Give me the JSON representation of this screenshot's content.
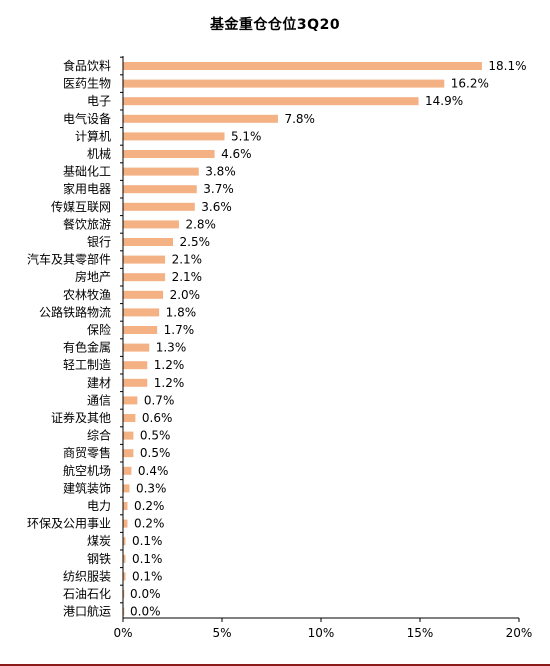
{
  "chart_data": {
    "type": "bar",
    "orientation": "horizontal",
    "title": "基金重仓仓位3Q20",
    "xlabel": "",
    "ylabel": "",
    "xlim": [
      0,
      20
    ],
    "x_ticks": [
      "0%",
      "5%",
      "10%",
      "15%",
      "20%"
    ],
    "grid": false,
    "bar_color": "#f4b183",
    "categories": [
      "食品饮料",
      "医药生物",
      "电子",
      "电气设备",
      "计算机",
      "机械",
      "基础化工",
      "家用电器",
      "传媒互联网",
      "餐饮旅游",
      "银行",
      "汽车及其零部件",
      "房地产",
      "农林牧渔",
      "公路铁路物流",
      "保险",
      "有色金属",
      "轻工制造",
      "建材",
      "通信",
      "证券及其他",
      "综合",
      "商贸零售",
      "航空机场",
      "建筑装饰",
      "电力",
      "环保及公用事业",
      "煤炭",
      "钢铁",
      "纺织服装",
      "石油石化",
      "港口航运"
    ],
    "values": [
      18.1,
      16.2,
      14.9,
      7.8,
      5.1,
      4.6,
      3.8,
      3.7,
      3.6,
      2.8,
      2.5,
      2.1,
      2.1,
      2.0,
      1.8,
      1.7,
      1.3,
      1.2,
      1.2,
      0.7,
      0.6,
      0.5,
      0.5,
      0.4,
      0.3,
      0.2,
      0.2,
      0.1,
      0.1,
      0.1,
      0.0,
      0.0
    ],
    "value_labels": [
      "18.1%",
      "16.2%",
      "14.9%",
      "7.8%",
      "5.1%",
      "4.6%",
      "3.8%",
      "3.7%",
      "3.6%",
      "2.8%",
      "2.5%",
      "2.1%",
      "2.1%",
      "2.0%",
      "1.8%",
      "1.7%",
      "1.3%",
      "1.2%",
      "1.2%",
      "0.7%",
      "0.6%",
      "0.5%",
      "0.5%",
      "0.4%",
      "0.3%",
      "0.2%",
      "0.2%",
      "0.1%",
      "0.1%",
      "0.1%",
      "0.0%",
      "0.0%"
    ]
  }
}
